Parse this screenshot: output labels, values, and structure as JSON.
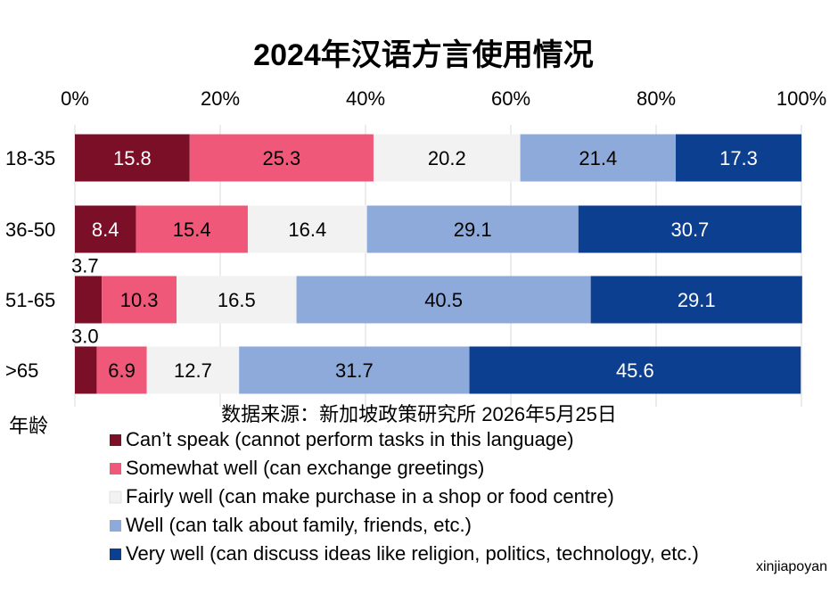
{
  "chart_data": {
    "type": "bar",
    "orientation": "horizontal",
    "stacked": true,
    "title": "2024年汉语方言使用情况",
    "ylabel": "年龄",
    "xlim": [
      0,
      100
    ],
    "x_ticks": [
      "0%",
      "20%",
      "40%",
      "60%",
      "80%",
      "100%"
    ],
    "x_tick_values": [
      0,
      20,
      40,
      60,
      80,
      100
    ],
    "grid": true,
    "legend_position": "bottom",
    "categories": [
      "18-35",
      "36-50",
      "51-65",
      ">65"
    ],
    "series": [
      {
        "name": "Can’t speak (cannot perform tasks in this language)",
        "color": "#7a0f27",
        "label_color": "#ffffff",
        "values": [
          15.8,
          8.4,
          3.7,
          3.0
        ]
      },
      {
        "name": "Somewhat well (can exchange greetings)",
        "color": "#f0587a",
        "label_color": "#000000",
        "values": [
          25.3,
          15.4,
          10.3,
          6.9
        ]
      },
      {
        "name": "Fairly well (can make purchase in a shop or food centre)",
        "color": "#f2f2f2",
        "label_color": "#000000",
        "values": [
          20.2,
          16.4,
          16.5,
          12.7
        ]
      },
      {
        "name": "Well (can talk about family, friends, etc.)",
        "color": "#8eaadb",
        "label_color": "#000000",
        "values": [
          21.4,
          29.1,
          40.5,
          31.7
        ]
      },
      {
        "name": "Very well (can discuss ideas like religion, politics, technology, etc.)",
        "color": "#0d3f91",
        "label_color": "#ffffff",
        "values": [
          17.3,
          30.7,
          29.1,
          45.6
        ]
      }
    ],
    "data_labels": [
      [
        "15.8",
        "25.3",
        "20.2",
        "21.4",
        "17.3"
      ],
      [
        "8.4",
        "15.4",
        "16.4",
        "29.1",
        "30.7"
      ],
      [
        "3.7",
        "10.3",
        "16.5",
        "40.5",
        "29.1"
      ],
      [
        "3.0",
        "6.9",
        "12.7",
        "31.7",
        "45.6"
      ]
    ],
    "annotations": {
      "source": "数据来源：新加坡政策研究所 2026年5月25日",
      "watermark": "xinjiapoyan"
    }
  }
}
